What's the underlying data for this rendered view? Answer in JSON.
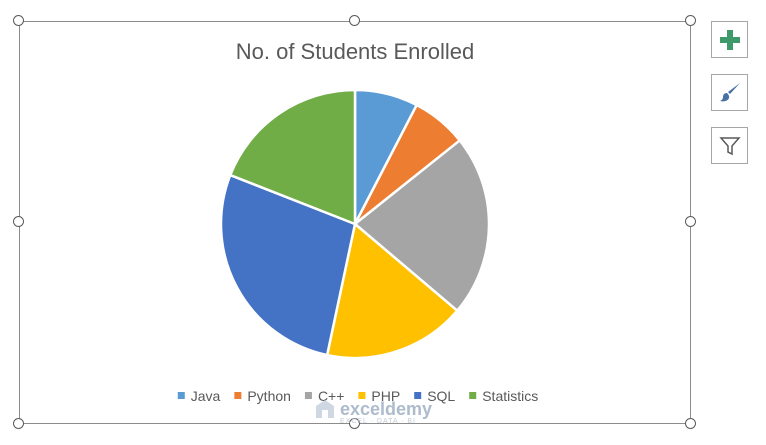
{
  "chart_data": {
    "type": "pie",
    "title": "No. of Students Enrolled",
    "categories": [
      "Java",
      "Python",
      "C++",
      "PHP",
      "SQL",
      "Statistics"
    ],
    "values": [
      8,
      7,
      23,
      18,
      29,
      20
    ],
    "colors": [
      "#5b9bd5",
      "#ed7d31",
      "#a5a5a5",
      "#ffc000",
      "#4472c4",
      "#70ad47"
    ],
    "legend_position": "bottom",
    "start_angle": "12 o'clock, clockwise"
  },
  "toolbar": {
    "chart_elements_icon": "plus-icon",
    "chart_styles_icon": "paintbrush-icon",
    "chart_filters_icon": "filter-icon"
  },
  "watermark": {
    "name": "exceldemy",
    "tagline": "EXCEL · DATA · BI"
  }
}
